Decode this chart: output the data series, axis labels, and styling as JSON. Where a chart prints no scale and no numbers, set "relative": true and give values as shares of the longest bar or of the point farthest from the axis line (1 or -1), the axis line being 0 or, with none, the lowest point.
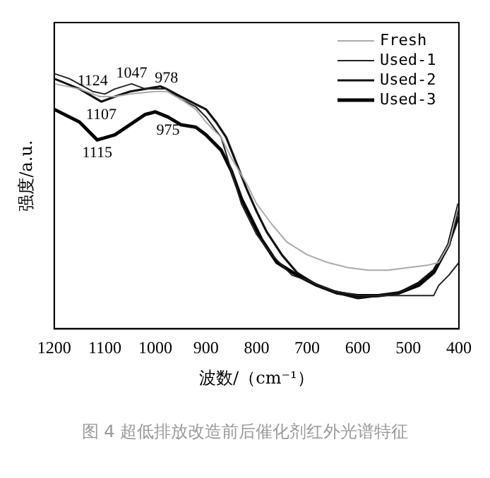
{
  "chart_data": {
    "type": "line",
    "relative": true,
    "xlabel": "波数/（cm⁻¹）",
    "ylabel": "强度/a.u.",
    "xlim": [
      1200,
      400
    ],
    "xticks": [
      1200,
      1100,
      1000,
      900,
      800,
      700,
      600,
      500,
      400
    ],
    "grid": false,
    "legend": "top right",
    "marker": "none",
    "line_style": "solid",
    "annotations": [
      {
        "text": "1124",
        "x": 1124,
        "y": 0.93
      },
      {
        "text": "1047",
        "x": 1047,
        "y": 0.96
      },
      {
        "text": "978",
        "x": 978,
        "y": 0.94
      },
      {
        "text": "1107",
        "x": 1107,
        "y": 0.89
      },
      {
        "text": "975",
        "x": 975,
        "y": 0.83
      },
      {
        "text": "1115",
        "x": 1115,
        "y": 0.74
      },
      "图 4 超低排放改造前后催化剂红外光谱特征"
    ],
    "series": [
      {
        "name": "Fresh",
        "color": "#aaaaaa",
        "x": [
          1200,
          1150,
          1110,
          1080,
          1050,
          1000,
          978,
          950,
          920,
          900,
          870,
          850,
          820,
          800,
          770,
          740,
          700,
          660,
          620,
          580,
          540,
          500,
          460,
          440,
          420,
          400
        ],
        "values": [
          0.96,
          0.94,
          0.91,
          0.91,
          0.92,
          0.93,
          0.93,
          0.9,
          0.86,
          0.81,
          0.75,
          0.67,
          0.57,
          0.49,
          0.41,
          0.34,
          0.29,
          0.26,
          0.24,
          0.23,
          0.23,
          0.24,
          0.25,
          0.26,
          0.33,
          0.49
        ]
      },
      {
        "name": "Used-1",
        "color": "#222222",
        "x": [
          1200,
          1170,
          1124,
          1100,
          1080,
          1047,
          1020,
          1000,
          978,
          950,
          920,
          900,
          870,
          850,
          830,
          800,
          770,
          730,
          700,
          650,
          600,
          560,
          500,
          450,
          440,
          420,
          400
        ],
        "values": [
          1.0,
          0.98,
          0.93,
          0.92,
          0.94,
          0.96,
          0.94,
          0.94,
          0.94,
          0.9,
          0.87,
          0.83,
          0.75,
          0.62,
          0.49,
          0.37,
          0.29,
          0.21,
          0.19,
          0.15,
          0.13,
          0.13,
          0.13,
          0.13,
          0.17,
          0.21,
          0.26
        ]
      },
      {
        "name": "Used-2",
        "color": "#111111",
        "x": [
          1200,
          1150,
          1107,
          1080,
          1050,
          1020,
          990,
          978,
          950,
          920,
          900,
          880,
          860,
          840,
          820,
          800,
          780,
          750,
          720,
          680,
          640,
          600,
          560,
          520,
          480,
          450,
          420,
          400
        ],
        "values": [
          0.98,
          0.94,
          0.89,
          0.91,
          0.93,
          0.94,
          0.95,
          0.94,
          0.91,
          0.88,
          0.86,
          0.81,
          0.75,
          0.65,
          0.55,
          0.46,
          0.38,
          0.29,
          0.22,
          0.17,
          0.14,
          0.12,
          0.13,
          0.14,
          0.18,
          0.23,
          0.33,
          0.44
        ]
      },
      {
        "name": "Used-3",
        "color": "#000000",
        "x": [
          1200,
          1150,
          1115,
          1080,
          1050,
          1020,
          1000,
          975,
          950,
          920,
          900,
          870,
          850,
          830,
          810,
          790,
          760,
          720,
          680,
          640,
          600,
          560,
          520,
          480,
          450,
          420,
          400
        ],
        "values": [
          0.86,
          0.81,
          0.74,
          0.76,
          0.8,
          0.84,
          0.85,
          0.83,
          0.8,
          0.79,
          0.76,
          0.7,
          0.62,
          0.51,
          0.43,
          0.35,
          0.26,
          0.21,
          0.17,
          0.14,
          0.13,
          0.13,
          0.14,
          0.17,
          0.22,
          0.33,
          0.49
        ]
      }
    ]
  }
}
